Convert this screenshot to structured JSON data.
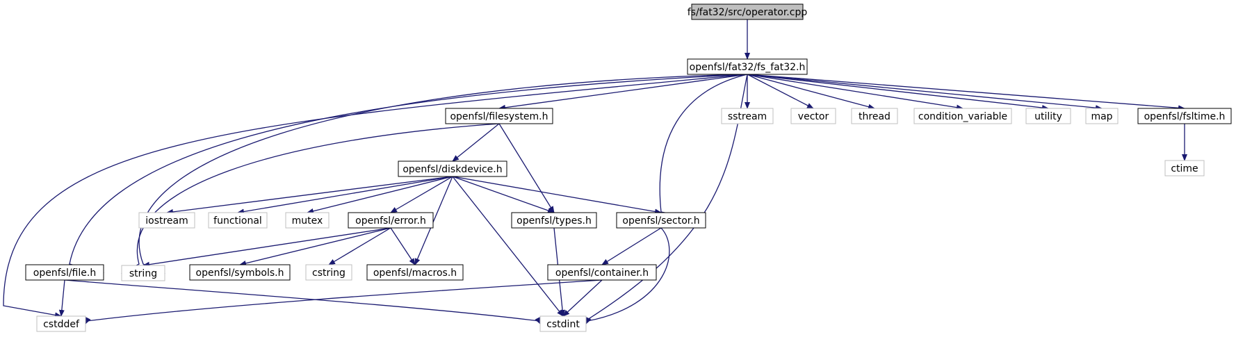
{
  "colors": {
    "edge": "#191970",
    "node_border": "#000000",
    "system_border": "#bfbfbf",
    "root_fill": "#bfbfbf",
    "fill": "#ffffff"
  },
  "nodes": [
    {
      "id": "operator",
      "label": "fs/fat32/src/operator.cpp",
      "kind": "root"
    },
    {
      "id": "fs_fat32",
      "label": "openfsl/fat32/fs_fat32.h",
      "kind": "local"
    },
    {
      "id": "filesystem",
      "label": "openfsl/filesystem.h",
      "kind": "local"
    },
    {
      "id": "sstream",
      "label": "sstream",
      "kind": "system"
    },
    {
      "id": "vector",
      "label": "vector",
      "kind": "system"
    },
    {
      "id": "thread",
      "label": "thread",
      "kind": "system"
    },
    {
      "id": "condition_variable",
      "label": "condition_variable",
      "kind": "system"
    },
    {
      "id": "utility",
      "label": "utility",
      "kind": "system"
    },
    {
      "id": "map",
      "label": "map",
      "kind": "system"
    },
    {
      "id": "fsltime",
      "label": "openfsl/fsltime.h",
      "kind": "local"
    },
    {
      "id": "ctime",
      "label": "ctime",
      "kind": "system"
    },
    {
      "id": "diskdevice",
      "label": "openfsl/diskdevice.h",
      "kind": "local"
    },
    {
      "id": "iostream",
      "label": "iostream",
      "kind": "system"
    },
    {
      "id": "functional",
      "label": "functional",
      "kind": "system"
    },
    {
      "id": "mutex",
      "label": "mutex",
      "kind": "system"
    },
    {
      "id": "error",
      "label": "openfsl/error.h",
      "kind": "local"
    },
    {
      "id": "types",
      "label": "openfsl/types.h",
      "kind": "local"
    },
    {
      "id": "sector",
      "label": "openfsl/sector.h",
      "kind": "local"
    },
    {
      "id": "file",
      "label": "openfsl/file.h",
      "kind": "local"
    },
    {
      "id": "string",
      "label": "string",
      "kind": "system"
    },
    {
      "id": "symbols",
      "label": "openfsl/symbols.h",
      "kind": "local"
    },
    {
      "id": "cstring",
      "label": "cstring",
      "kind": "system"
    },
    {
      "id": "macros",
      "label": "openfsl/macros.h",
      "kind": "local"
    },
    {
      "id": "container",
      "label": "openfsl/container.h",
      "kind": "local"
    },
    {
      "id": "cstddef",
      "label": "cstddef",
      "kind": "system"
    },
    {
      "id": "cstdint",
      "label": "cstdint",
      "kind": "system"
    }
  ],
  "edges": [
    [
      "operator",
      "fs_fat32"
    ],
    [
      "fs_fat32",
      "cstddef"
    ],
    [
      "fs_fat32",
      "file"
    ],
    [
      "fs_fat32",
      "string"
    ],
    [
      "fs_fat32",
      "filesystem"
    ],
    [
      "fs_fat32",
      "sector"
    ],
    [
      "fs_fat32",
      "cstdint"
    ],
    [
      "fs_fat32",
      "sstream"
    ],
    [
      "fs_fat32",
      "vector"
    ],
    [
      "fs_fat32",
      "thread"
    ],
    [
      "fs_fat32",
      "condition_variable"
    ],
    [
      "fs_fat32",
      "utility"
    ],
    [
      "fs_fat32",
      "map"
    ],
    [
      "fs_fat32",
      "fsltime"
    ],
    [
      "fsltime",
      "ctime"
    ],
    [
      "filesystem",
      "string"
    ],
    [
      "filesystem",
      "diskdevice"
    ],
    [
      "filesystem",
      "types"
    ],
    [
      "diskdevice",
      "iostream"
    ],
    [
      "diskdevice",
      "functional"
    ],
    [
      "diskdevice",
      "mutex"
    ],
    [
      "diskdevice",
      "error"
    ],
    [
      "diskdevice",
      "macros"
    ],
    [
      "diskdevice",
      "cstdint"
    ],
    [
      "diskdevice",
      "types"
    ],
    [
      "diskdevice",
      "sector"
    ],
    [
      "error",
      "string"
    ],
    [
      "error",
      "symbols"
    ],
    [
      "error",
      "cstring"
    ],
    [
      "error",
      "macros"
    ],
    [
      "types",
      "cstdint"
    ],
    [
      "sector",
      "container"
    ],
    [
      "sector",
      "cstdint"
    ],
    [
      "container",
      "cstddef"
    ],
    [
      "container",
      "cstdint"
    ],
    [
      "file",
      "cstddef"
    ],
    [
      "file",
      "cstdint"
    ]
  ]
}
